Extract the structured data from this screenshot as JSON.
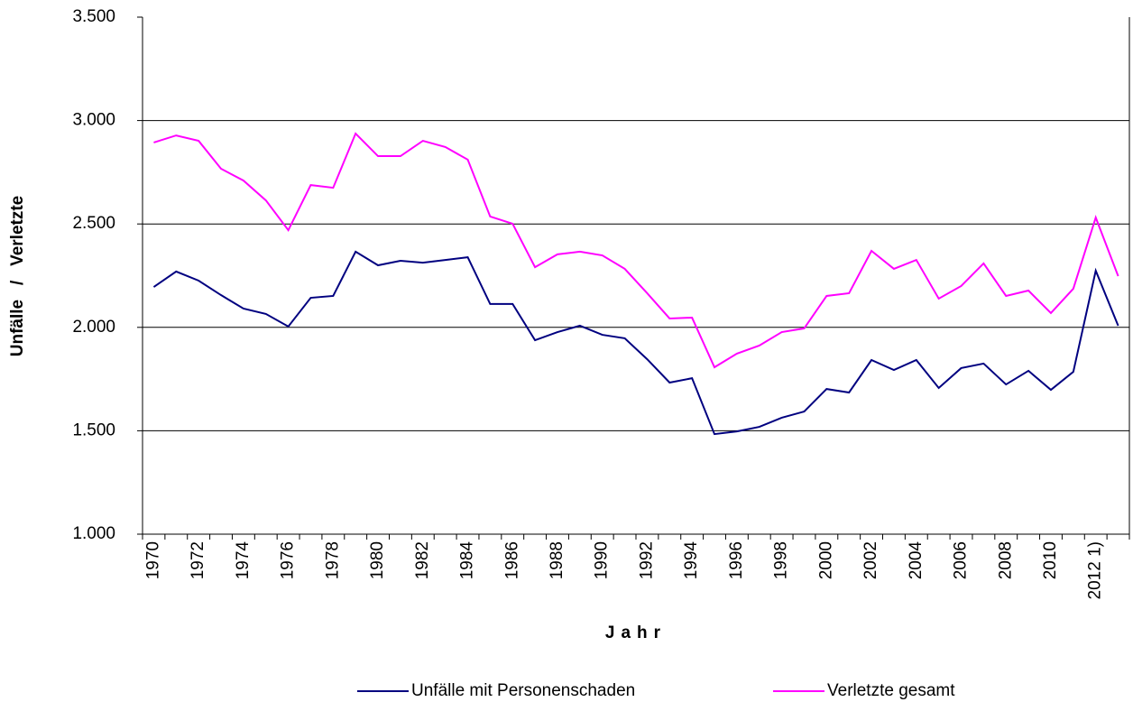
{
  "chart_data": {
    "type": "line",
    "x_label": "Jahr",
    "y_label": "Unfälle   /   Verletzte",
    "categories": [
      "1970",
      null,
      "1972",
      null,
      "1974",
      null,
      "1976",
      null,
      "1978",
      null,
      "1980",
      null,
      "1982",
      null,
      "1984",
      null,
      "1986",
      null,
      "1988",
      null,
      "1990",
      null,
      "1992",
      null,
      "1994",
      null,
      "1996",
      null,
      "1998",
      null,
      "2000",
      null,
      "2002",
      null,
      "2004",
      null,
      "2006",
      null,
      "2008",
      null,
      "2010",
      null,
      "2012 1)",
      null
    ],
    "series": [
      {
        "name": "Unfälle mit Personenschaden",
        "color": "#000080",
        "values": [
          2195,
          2270,
          2226,
          2156,
          2091,
          2065,
          2004,
          2143,
          2152,
          2366,
          2300,
          2322,
          2313,
          2326,
          2339,
          2113,
          2113,
          1938,
          1977,
          2008,
          1964,
          1947,
          1846,
          1733,
          1754,
          1484,
          1497,
          1519,
          1563,
          1593,
          1702,
          1685,
          1842,
          1794,
          1842,
          1707,
          1803,
          1825,
          1724,
          1790,
          1698,
          1785,
          2274,
          2008
        ]
      },
      {
        "name": "Verletzte gesamt",
        "color": "#ff00ff",
        "values": [
          2894,
          2928,
          2902,
          2767,
          2710,
          2614,
          2470,
          2688,
          2675,
          2937,
          2828,
          2828,
          2902,
          2872,
          2811,
          2536,
          2501,
          2291,
          2353,
          2366,
          2348,
          2283,
          2165,
          2043,
          2047,
          1807,
          1873,
          1912,
          1977,
          1995,
          2152,
          2165,
          2370,
          2283,
          2326,
          2139,
          2200,
          2309,
          2152,
          2178,
          2069,
          2187,
          2531,
          2248
        ]
      }
    ],
    "ylim": [
      1000,
      3500
    ],
    "yticks": [
      {
        "value": 1000,
        "label": "1.000"
      },
      {
        "value": 1500,
        "label": "1.500"
      },
      {
        "value": 2000,
        "label": "2.000"
      },
      {
        "value": 2500,
        "label": "2.500"
      },
      {
        "value": 3000,
        "label": "3.000"
      },
      {
        "value": 3500,
        "label": "3.500"
      }
    ],
    "grid": true,
    "legend": "bottom"
  }
}
